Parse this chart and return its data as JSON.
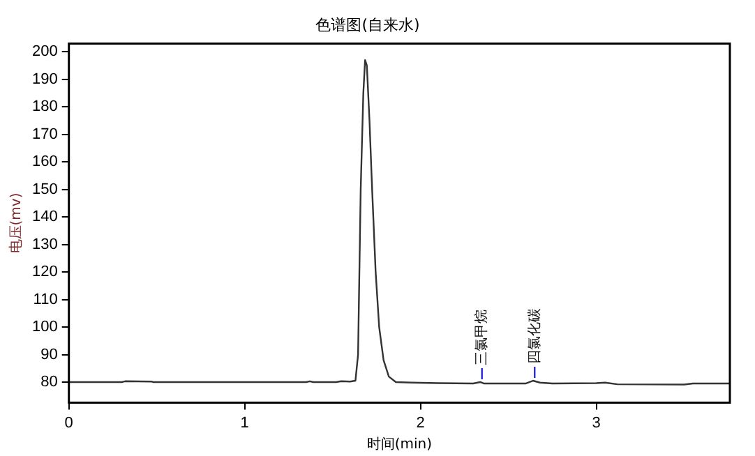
{
  "chart_data": {
    "type": "line",
    "title": "色谱图(自来水)",
    "xlabel": "时间(min)",
    "ylabel": "电压(mv)",
    "x": [
      0,
      0.3,
      0.32,
      0.47,
      0.48,
      1.35,
      1.37,
      1.39,
      1.52,
      1.55,
      1.6,
      1.63,
      1.645,
      1.66,
      1.675,
      1.685,
      1.695,
      1.71,
      1.725,
      1.745,
      1.765,
      1.79,
      1.82,
      1.86,
      1.95,
      2.1,
      2.3,
      2.34,
      2.36,
      2.6,
      2.64,
      2.68,
      2.75,
      3.0,
      3.05,
      3.12,
      3.5,
      3.55,
      3.76
    ],
    "series": [
      {
        "color": "#333333",
        "values": [
          80,
          80,
          80.3,
          80.2,
          80,
          80,
          80.3,
          80,
          80,
          80.3,
          80.2,
          80.5,
          90,
          150,
          185,
          197,
          195,
          175,
          150,
          120,
          100,
          88,
          82,
          80,
          79.8,
          79.6,
          79.5,
          80,
          79.5,
          79.5,
          80.5,
          79.8,
          79.5,
          79.6,
          79.8,
          79.2,
          79.1,
          79.5,
          79.5
        ]
      }
    ],
    "xlim": [
      0,
      3.76
    ],
    "xticks": [
      0,
      1,
      2,
      3
    ],
    "ylim": [
      72.5,
      203
    ],
    "yticks": [
      80,
      90,
      100,
      110,
      120,
      130,
      140,
      150,
      160,
      170,
      180,
      190,
      200
    ],
    "grid": false,
    "legend": false,
    "marker": "none",
    "line_style": "solid",
    "annotations": [
      {
        "text": "三氯甲烷",
        "x": 2.35,
        "y": 80
      },
      {
        "text": "四氯化碳",
        "x": 2.65,
        "y": 80.5
      }
    ]
  }
}
